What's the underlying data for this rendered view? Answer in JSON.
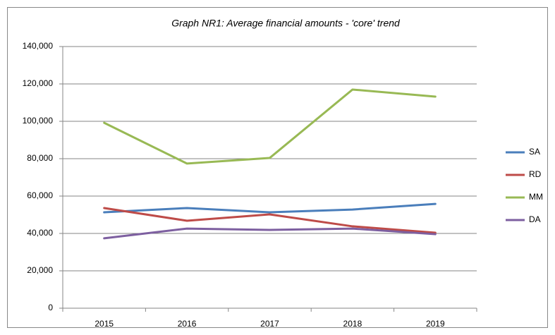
{
  "chart_data": {
    "type": "line",
    "title": "Graph NR1: Average financial amounts - 'core' trend",
    "categories": [
      "2015",
      "2016",
      "2017",
      "2018",
      "2019"
    ],
    "series": [
      {
        "name": "SA",
        "color": "#4a7ebb",
        "values": [
          51300,
          53600,
          51300,
          52800,
          55800
        ]
      },
      {
        "name": "RD",
        "color": "#be4b48",
        "values": [
          53600,
          46800,
          50200,
          43800,
          40400
        ]
      },
      {
        "name": "MM",
        "color": "#98b954",
        "values": [
          99200,
          77400,
          80400,
          117000,
          113200
        ]
      },
      {
        "name": "DA",
        "color": "#7d5fa0",
        "values": [
          37400,
          42600,
          41900,
          42600,
          39600
        ]
      }
    ],
    "ylim": [
      0,
      140000
    ],
    "yticks": [
      0,
      {
        "value": 20000,
        "label": "20,000"
      },
      {
        "value": 40000,
        "label": "40,000"
      },
      {
        "value": 60000,
        "label": "60,000"
      },
      {
        "value": 80000,
        "label": "80,000"
      },
      {
        "value": 100000,
        "label": "100,000"
      },
      {
        "value": 120000,
        "label": "120,000"
      },
      {
        "value": 140000,
        "label": "140,000"
      }
    ],
    "grid": true,
    "legend": "right"
  }
}
